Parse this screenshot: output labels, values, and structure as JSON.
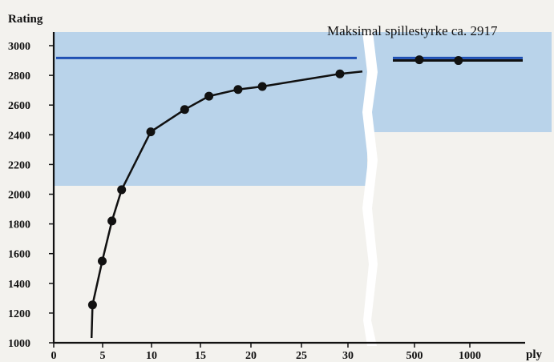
{
  "chart_data": {
    "type": "line",
    "ylabel": "Rating",
    "xlabel": "ply",
    "ylim": [
      1000,
      3000
    ],
    "y_ticks": [
      1000,
      1200,
      1400,
      1600,
      1800,
      2000,
      2200,
      2400,
      2600,
      2800,
      3000
    ],
    "x_tick_labels": [
      "0",
      "5",
      "10",
      "15",
      "20",
      "25",
      "30",
      "500",
      "1000"
    ],
    "axis_break_between": [
      30,
      500
    ],
    "grid": false,
    "colors": {
      "series": "#111111",
      "limit_line": "#1f4fb3",
      "plot_background": "#b9d3ea"
    },
    "series": [
      {
        "x": [
          4,
          5,
          6,
          7,
          10,
          13.5,
          16,
          19,
          21.5,
          29.5,
          500,
          900
        ],
        "y": [
          1255,
          1550,
          1820,
          2030,
          2420,
          2570,
          2660,
          2705,
          2725,
          2810,
          2905,
          2900
        ]
      }
    ],
    "reference_line": {
      "y": 2917,
      "label": "Maksimal spillestyrke ca. 2917"
    }
  }
}
